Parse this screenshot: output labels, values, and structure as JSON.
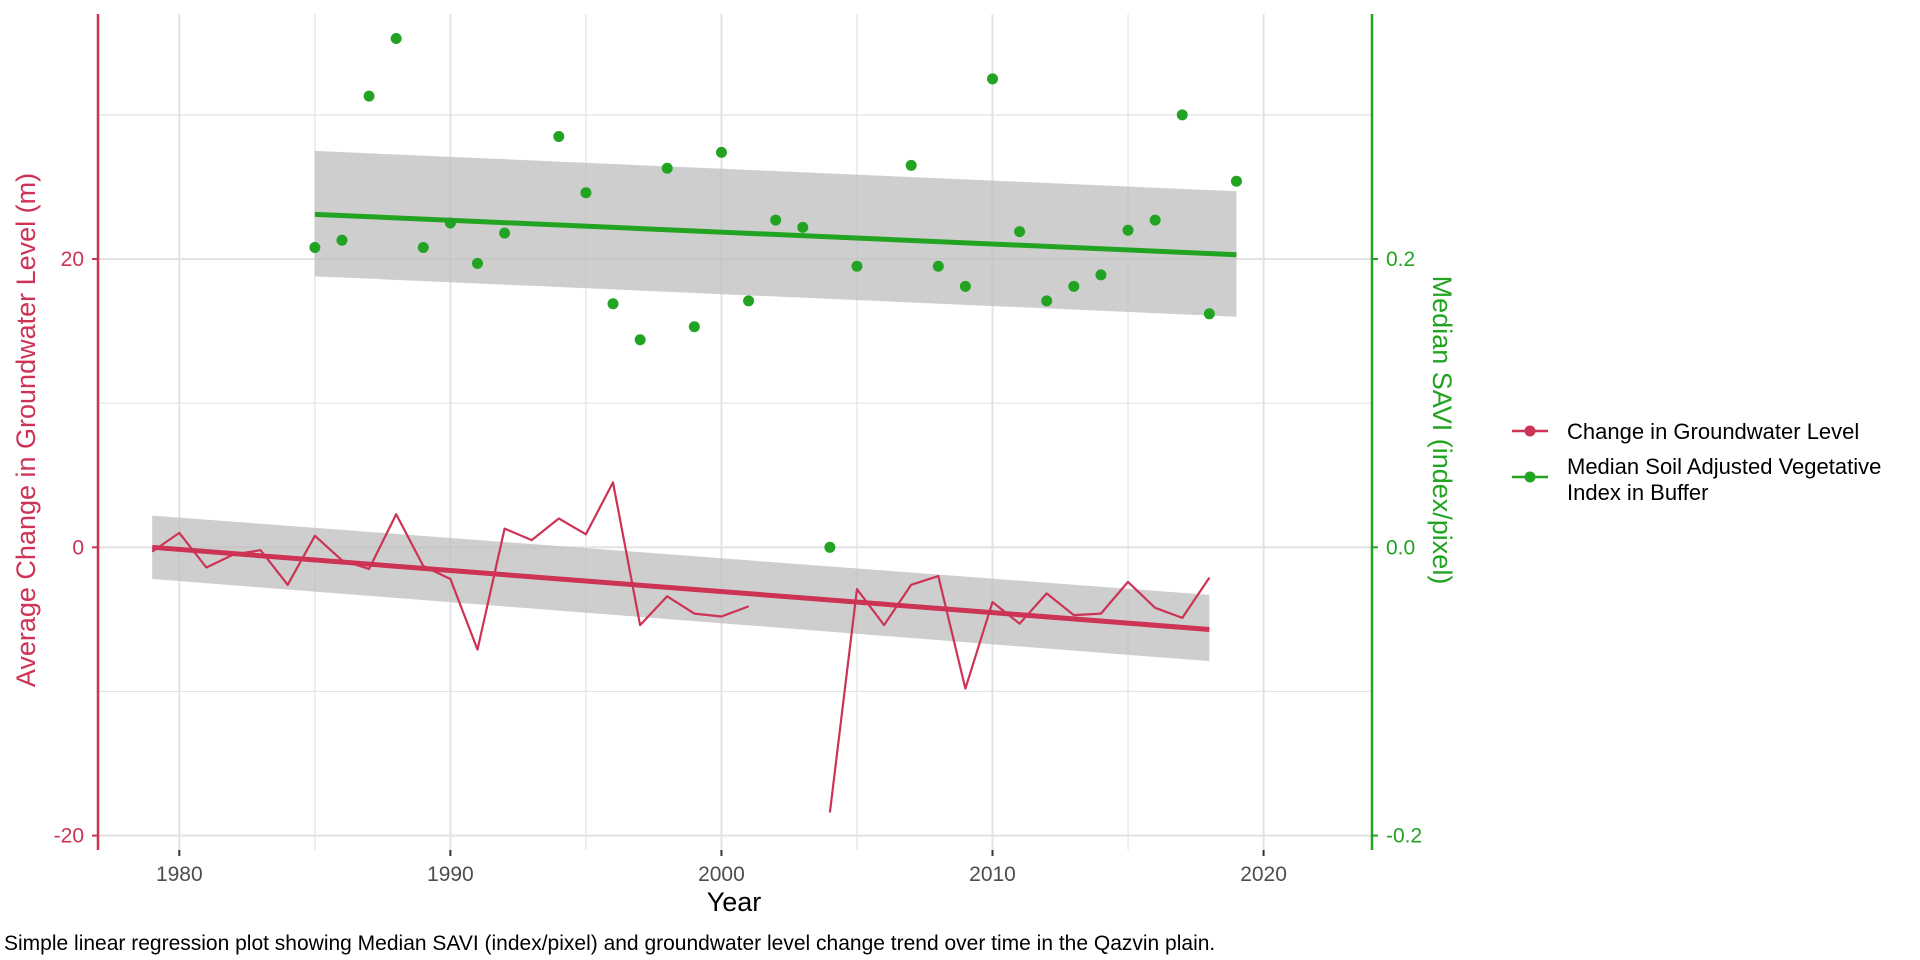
{
  "caption": "Simple linear regression plot showing Median SAVI (index/pixel) and groundwater level change trend over time in the Qazvin plain.",
  "colors": {
    "groundwater": "#cc3355",
    "savi": "#22a322",
    "band": "#bdbdbd",
    "grid": "#e3e3e3"
  },
  "chart_data": {
    "type": "line",
    "title": "",
    "xlabel": "Year",
    "ylabel": "Average Change in Groundwater Level (m)",
    "y2label": "Median SAVI (index/pixel)",
    "xlim": [
      1977,
      2024
    ],
    "ylim": [
      -21,
      37
    ],
    "y2lim": [
      -0.21,
      0.37
    ],
    "xticks": [
      1980,
      1990,
      2000,
      2010,
      2020
    ],
    "yticks": [
      -20,
      0,
      20
    ],
    "y2ticks": [
      "-0.2",
      "0.0",
      "0.2"
    ],
    "grid": true,
    "legend_position": "right",
    "legend": [
      "Change in Groundwater Level",
      "Median Soil Adjusted Vegetative Index in Buffer"
    ],
    "series": [
      {
        "name": "Change in Groundwater Level",
        "axis": "left",
        "kind": "line",
        "x": [
          1979,
          1980,
          1981,
          1982,
          1983,
          1984,
          1985,
          1986,
          1987,
          1988,
          1989,
          1990,
          1991,
          1992,
          1993,
          1994,
          1995,
          1996,
          1997,
          1998,
          1999,
          2000,
          2001,
          null,
          2004,
          2005,
          2006,
          2007,
          2008,
          2009,
          2010,
          2011,
          2012,
          2013,
          2014,
          2015,
          2016,
          2017,
          2018
        ],
        "y": [
          -0.3,
          1.0,
          -1.4,
          -0.5,
          -0.2,
          -2.6,
          0.8,
          -0.9,
          -1.5,
          2.3,
          -1.3,
          -2.2,
          -7.1,
          1.3,
          0.5,
          2.0,
          0.9,
          4.5,
          -5.4,
          -3.4,
          -4.6,
          -4.8,
          -4.1,
          null,
          -18.4,
          -2.9,
          -5.4,
          -2.6,
          -2.0,
          -9.8,
          -3.8,
          -5.3,
          -3.2,
          -4.7,
          -4.6,
          -2.4,
          -4.2,
          -4.9,
          -2.1
        ]
      },
      {
        "name": "Median Soil Adjusted Vegetative Index in Buffer",
        "axis": "right",
        "kind": "scatter",
        "x": [
          1985,
          1986,
          1987,
          1988,
          1989,
          1990,
          1991,
          1992,
          1994,
          1995,
          1996,
          1997,
          1998,
          1999,
          2000,
          2001,
          2002,
          2003,
          2004,
          2005,
          2007,
          2008,
          2009,
          2010,
          2011,
          2012,
          2013,
          2014,
          2015,
          2016,
          2017,
          2018,
          2019
        ],
        "y": [
          0.208,
          0.213,
          0.313,
          0.353,
          0.208,
          0.225,
          0.197,
          0.218,
          0.285,
          0.246,
          0.169,
          0.144,
          0.263,
          0.153,
          0.274,
          0.171,
          0.227,
          0.222,
          0.0,
          0.195,
          0.265,
          0.195,
          0.181,
          0.325,
          0.219,
          0.171,
          0.181,
          0.189,
          0.22,
          0.227,
          0.3,
          0.162,
          0.254
        ]
      }
    ],
    "trends": [
      {
        "series": "Change in Groundwater Level",
        "axis": "left",
        "x": [
          1979,
          2018
        ],
        "y": [
          0.0,
          -5.7
        ],
        "ci_lower": [
          -2.2,
          -7.9
        ],
        "ci_upper": [
          2.2,
          -3.3
        ]
      },
      {
        "series": "Median Soil Adjusted Vegetative Index in Buffer",
        "axis": "right",
        "x": [
          1985,
          2019
        ],
        "y": [
          0.231,
          0.203
        ],
        "ci_lower": [
          0.188,
          0.16
        ],
        "ci_upper": [
          0.275,
          0.247
        ]
      }
    ]
  }
}
